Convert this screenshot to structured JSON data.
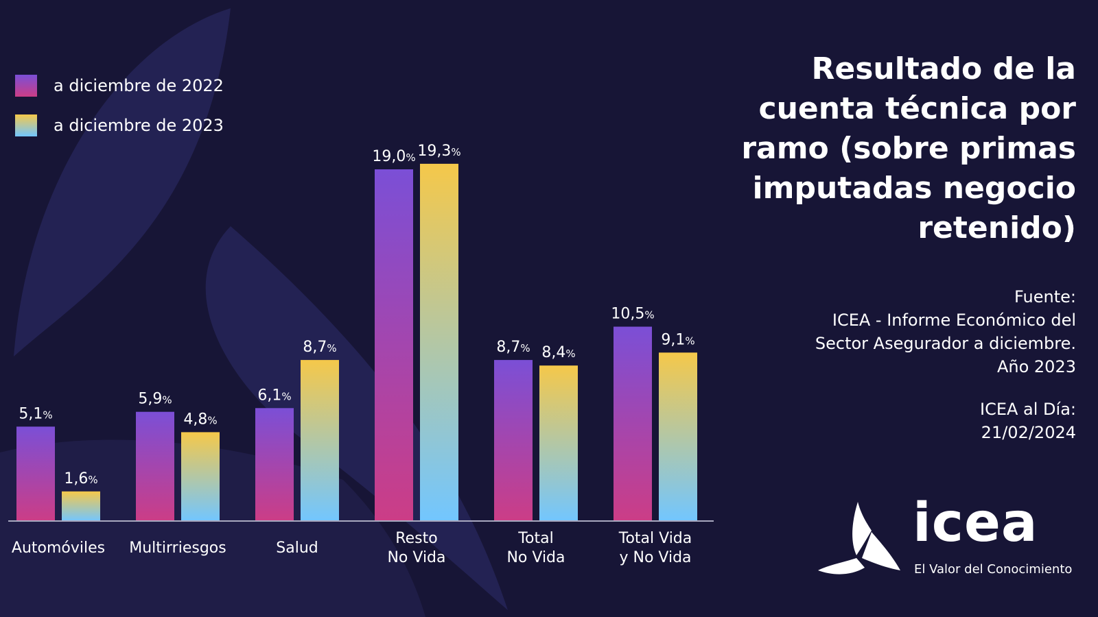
{
  "legend": [
    {
      "label": "a diciembre de 2022"
    },
    {
      "label": "a diciembre de 2023"
    }
  ],
  "title": "Resultado de la cuenta técnica por ramo (sobre primas imputadas negocio retenido)",
  "source": {
    "heading": "Fuente:",
    "lines": [
      "ICEA - Informe Económico del",
      "Sector Asegurador a diciembre.",
      "Año 2023"
    ]
  },
  "date": {
    "heading": "ICEA al Día:",
    "value": "21/02/2024"
  },
  "logo": {
    "word": "icea",
    "tagline": "El Valor del Conocimiento",
    "icon": "icea-logo-icon"
  },
  "colors": {
    "background": "#171536",
    "series_2022_top": "#7b4fd6",
    "series_2022_bottom": "#cc3d86",
    "series_2023_top": "#f5c84a",
    "series_2023_bottom": "#72c6ff"
  },
  "chart_data": {
    "type": "bar",
    "categories": [
      [
        "Automóviles"
      ],
      [
        "Multirriesgos"
      ],
      [
        "Salud"
      ],
      [
        "Resto",
        "No Vida"
      ],
      [
        "Total",
        "No Vida"
      ],
      [
        "Total Vida",
        "y No Vida"
      ]
    ],
    "series": [
      {
        "name": "a diciembre de 2022",
        "values": [
          5.1,
          5.9,
          6.1,
          19.0,
          8.7,
          10.5
        ],
        "labels": [
          "5,1",
          "5,9",
          "6,1",
          "19,0",
          "8,7",
          "10,5"
        ]
      },
      {
        "name": "a diciembre de 2023",
        "values": [
          1.6,
          4.8,
          8.7,
          19.3,
          8.4,
          9.1
        ],
        "labels": [
          "1,6",
          "4,8",
          "8,7",
          "19,3",
          "8,4",
          "9,1"
        ]
      }
    ],
    "unit": "%",
    "ylim": [
      0,
      20
    ],
    "grid": false,
    "legend_position": "top-left"
  }
}
